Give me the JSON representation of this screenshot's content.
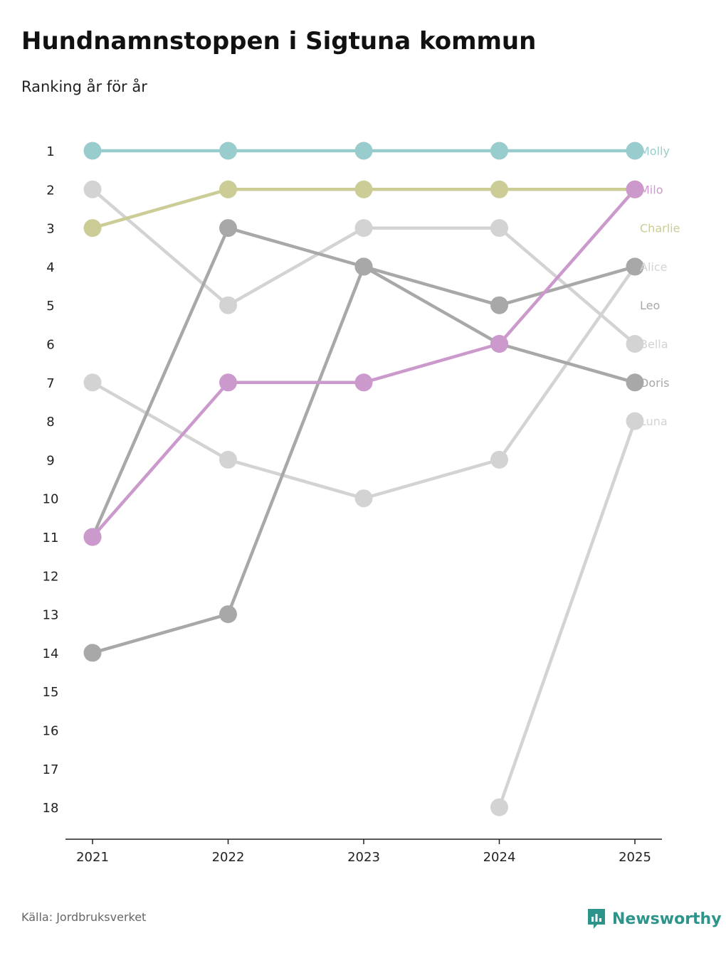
{
  "header": {
    "title": "Hundnamnstoppen i Sigtuna kommun",
    "subtitle": "Ranking år för år"
  },
  "footer": {
    "source": "Källa: Jordbruksverket",
    "brand": "Newsworthy",
    "brand_color": "#2c948b"
  },
  "chart_data": {
    "type": "line",
    "title": "Hundnamnstoppen i Sigtuna kommun",
    "subtitle": "Ranking år för år",
    "xlabel": "",
    "ylabel": "",
    "x": [
      "2021",
      "2022",
      "2023",
      "2024",
      "2025"
    ],
    "y_ticks": [
      "1",
      "2",
      "3",
      "4",
      "5",
      "6",
      "7",
      "8",
      "9",
      "10",
      "11",
      "12",
      "13",
      "14",
      "15",
      "16",
      "17",
      "18"
    ],
    "ylim": [
      1,
      18
    ],
    "y_inverted": true,
    "series": [
      {
        "name": "Luna",
        "color": "#d3d3d3",
        "values": [
          null,
          null,
          null,
          18,
          8
        ]
      },
      {
        "name": "Bella",
        "color": "#d3d3d3",
        "values": [
          2,
          5,
          3,
          3,
          6
        ]
      },
      {
        "name": "Alice",
        "color": "#d3d3d3",
        "values": [
          7,
          9,
          10,
          9,
          4
        ]
      },
      {
        "name": "Leo",
        "color": "#a8a8a8",
        "values": [
          14,
          13,
          4,
          5,
          4
        ]
      },
      {
        "name": "Doris",
        "color": "#a8a8a8",
        "values": [
          11,
          3,
          4,
          6,
          7
        ]
      },
      {
        "name": "Charlie",
        "color": "#cbcc96",
        "values": [
          3,
          2,
          2,
          2,
          2
        ]
      },
      {
        "name": "Milo",
        "color": "#cc99cc",
        "values": [
          11,
          7,
          7,
          6,
          2
        ]
      },
      {
        "name": "Molly",
        "color": "#99cccc",
        "values": [
          1,
          1,
          1,
          1,
          1
        ]
      }
    ],
    "end_labels": [
      {
        "text": "Molly",
        "rank": 1,
        "color": "#99cccc"
      },
      {
        "text": "Milo",
        "rank": 2,
        "color": "#cc99cc"
      },
      {
        "text": "Charlie",
        "rank": 3,
        "color": "#cbcc96"
      },
      {
        "text": "Alice",
        "rank": 4,
        "color": "#d3d3d3"
      },
      {
        "text": "Leo",
        "rank": 5,
        "color": "#a8a8a8"
      },
      {
        "text": "Bella",
        "rank": 6,
        "color": "#d3d3d3"
      },
      {
        "text": "Doris",
        "rank": 7,
        "color": "#a8a8a8"
      },
      {
        "text": "Luna",
        "rank": 8,
        "color": "#d3d3d3"
      }
    ],
    "legend": "direct labels at right"
  }
}
